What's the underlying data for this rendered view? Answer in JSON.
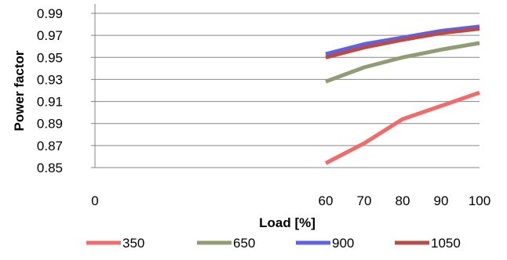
{
  "chart_data": {
    "type": "line",
    "title": "",
    "xlabel": "Load [%]",
    "ylabel": "Power factor",
    "xlim": [
      0,
      100
    ],
    "ylim": [
      0.85,
      0.99
    ],
    "x_ticks": [
      0,
      60,
      70,
      80,
      90,
      100
    ],
    "y_ticks": [
      "0.85",
      "0.87",
      "0.89",
      "0.91",
      "0.93",
      "0.95",
      "0.97",
      "0.99"
    ],
    "grid": "horizontal",
    "legend_position": "bottom",
    "x": [
      60,
      70,
      80,
      90,
      100
    ],
    "series": [
      {
        "name": "350",
        "color": "#f26b6b",
        "values": [
          0.854,
          0.872,
          0.894,
          0.906,
          0.918
        ]
      },
      {
        "name": "650",
        "color": "#8f9c74",
        "values": [
          0.928,
          0.941,
          0.95,
          0.957,
          0.963
        ]
      },
      {
        "name": "900",
        "color": "#5f61ea",
        "values": [
          0.953,
          0.962,
          0.968,
          0.974,
          0.978
        ]
      },
      {
        "name": "1050",
        "color": "#b84c48",
        "values": [
          0.95,
          0.959,
          0.966,
          0.972,
          0.976
        ]
      }
    ]
  }
}
